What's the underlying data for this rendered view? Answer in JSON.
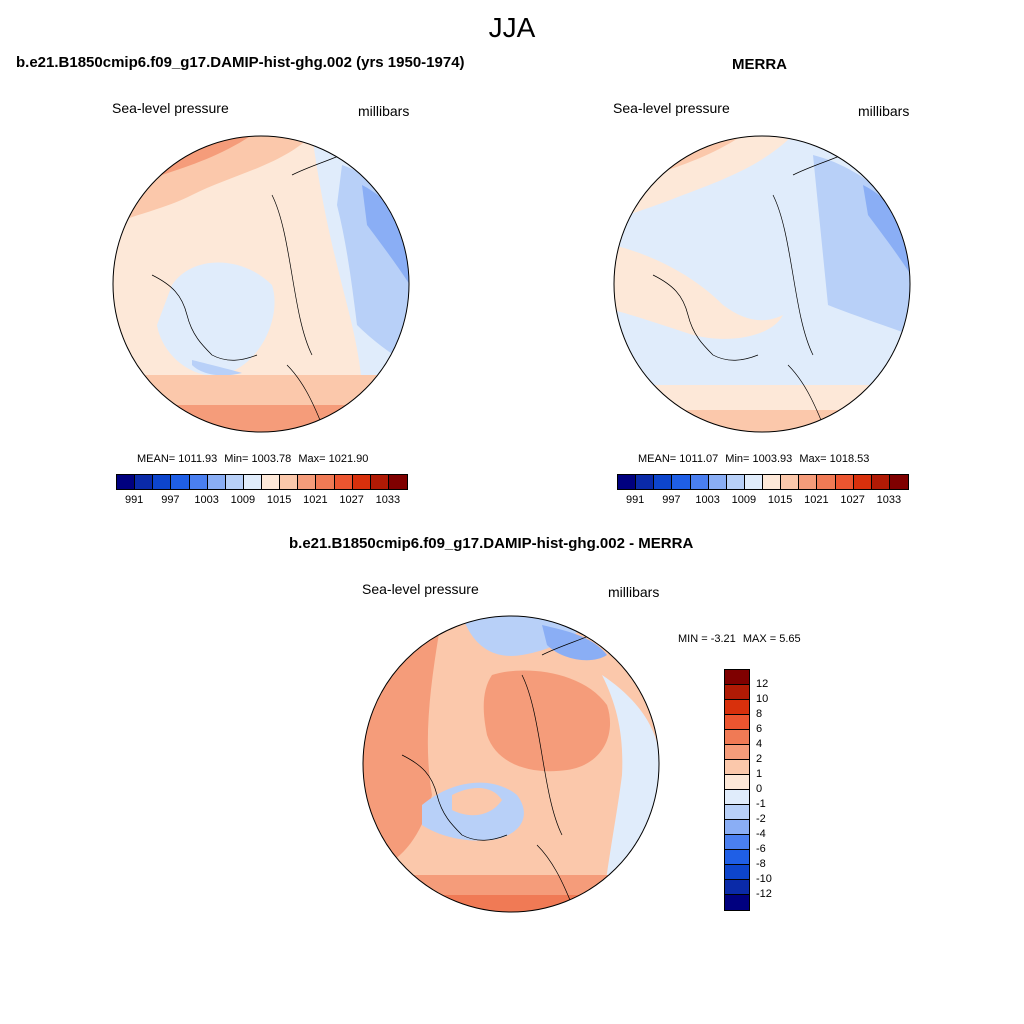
{
  "season": "JJA",
  "panel_model": {
    "title": "b.e21.B1850cmip6.f09_g17.DAMIP-hist-ghg.002 (yrs 1950-1974)",
    "left_label": "Sea-level pressure",
    "right_label": "millibars",
    "mean_label": "MEAN=",
    "mean": "1011.93",
    "min_label": "Min=",
    "min": "1003.78",
    "max_label": "Max=",
    "max": "1021.90"
  },
  "panel_obs": {
    "title": "MERRA",
    "left_label": "Sea-level pressure",
    "right_label": "millibars",
    "mean_label": "MEAN=",
    "mean": "1011.07",
    "min_label": "Min=",
    "min": "1003.93",
    "max_label": "Max=",
    "max": "1018.53"
  },
  "panel_diff": {
    "title": "b.e21.B1850cmip6.f09_g17.DAMIP-hist-ghg.002 - MERRA",
    "left_label": "Sea-level pressure",
    "right_label": "millibars",
    "min_label": "MIN =",
    "min": "-3.21",
    "max_label": "MAX =",
    "max": "5.65"
  },
  "abs_colorbar": {
    "colors": [
      "#00007f",
      "#0a2aa8",
      "#0d45cc",
      "#1f5fe6",
      "#4a7ff0",
      "#8aaef5",
      "#b8d0f8",
      "#e0ecfb",
      "#fde8d8",
      "#fbc8ab",
      "#f59c7a",
      "#f07a55",
      "#ec5530",
      "#d8300c",
      "#b01a05",
      "#7f0000"
    ],
    "tick_labels": [
      "991",
      "997",
      "1003",
      "1009",
      "1015",
      "1021",
      "1027",
      "1033"
    ]
  },
  "diff_colorbar": {
    "colors": [
      "#7f0000",
      "#b01a05",
      "#d8300c",
      "#ec5530",
      "#f07a55",
      "#f59c7a",
      "#fbc8ab",
      "#fde8d8",
      "#e0ecfb",
      "#b8d0f8",
      "#8aaef5",
      "#4a7ff0",
      "#1f5fe6",
      "#0d45cc",
      "#0a2aa8",
      "#00007f"
    ],
    "tick_labels": [
      "12",
      "10",
      "8",
      "6",
      "4",
      "2",
      "1",
      "0",
      "-1",
      "-2",
      "-4",
      "-6",
      "-8",
      "-10",
      "-12"
    ]
  }
}
